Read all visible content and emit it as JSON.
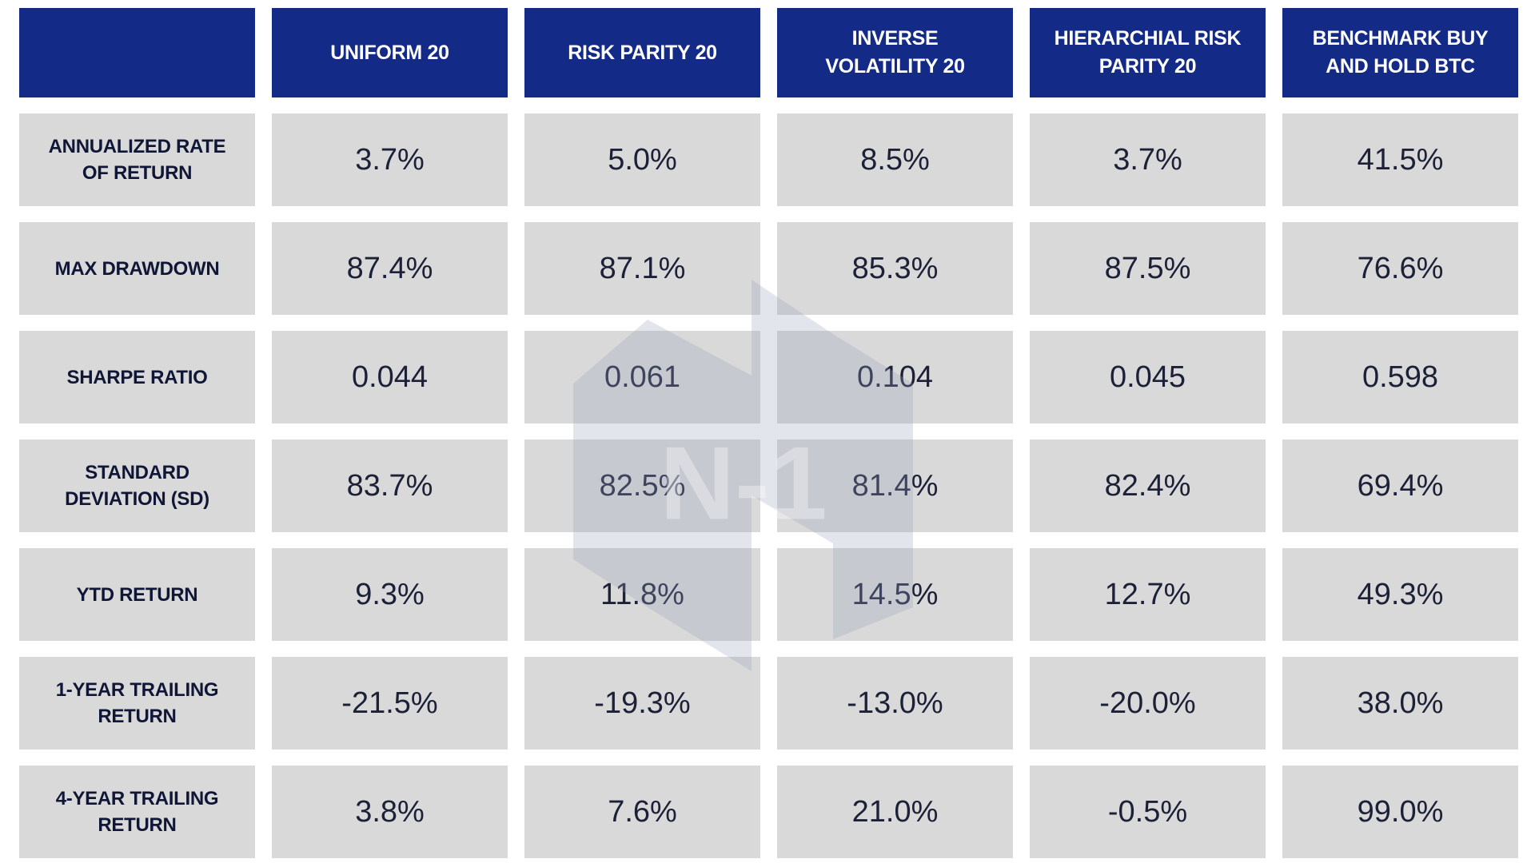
{
  "watermark": "N-1",
  "table": {
    "columns": [
      "UNIFORM 20",
      "RISK PARITY 20",
      "INVERSE VOLATILITY 20",
      "HIERARCHIAL RISK PARITY 20",
      "BENCHMARK BUY AND HOLD BTC"
    ],
    "rows": [
      {
        "label": "ANNUALIZED RATE OF RETURN",
        "values": [
          "3.7%",
          "5.0%",
          "8.5%",
          "3.7%",
          "41.5%"
        ]
      },
      {
        "label": "MAX DRAWDOWN",
        "values": [
          "87.4%",
          "87.1%",
          "85.3%",
          "87.5%",
          "76.6%"
        ]
      },
      {
        "label": "SHARPE RATIO",
        "values": [
          "0.044",
          "0.061",
          "0.104",
          "0.045",
          "0.598"
        ]
      },
      {
        "label": "STANDARD DEVIATION (SD)",
        "values": [
          "83.7%",
          "82.5%",
          "81.4%",
          "82.4%",
          "69.4%"
        ]
      },
      {
        "label": "YTD RETURN",
        "values": [
          "9.3%",
          "11.8%",
          "14.5%",
          "12.7%",
          "49.3%"
        ]
      },
      {
        "label": "1-YEAR TRAILING RETURN",
        "values": [
          "-21.5%",
          "-19.3%",
          "-13.0%",
          "-20.0%",
          "38.0%"
        ]
      },
      {
        "label": "4-YEAR TRAILING RETURN",
        "values": [
          "3.8%",
          "7.6%",
          "21.0%",
          "-0.5%",
          "99.0%"
        ]
      }
    ]
  }
}
